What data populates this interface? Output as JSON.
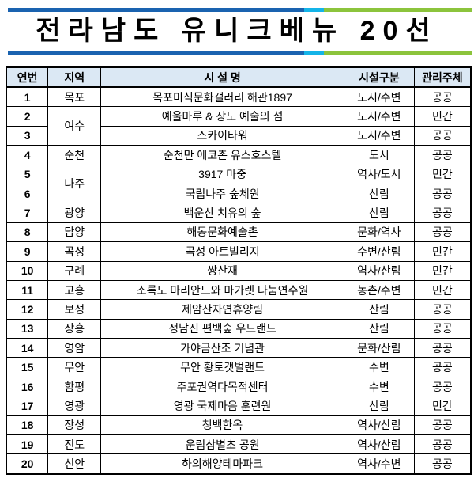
{
  "title": "전라남도 유니크베뉴 20선",
  "colors": {
    "bar_blue": "#1a63b0",
    "bar_cyan": "#14b4e8",
    "bar_green": "#8cc43c",
    "header_bg": "#dbe8f4"
  },
  "headers": [
    "연번",
    "지역",
    "시 설 명",
    "시설구분",
    "관리주체"
  ],
  "rows": [
    {
      "no": "1",
      "region": "목포",
      "name": "목포미식문화갤러리 해관1897",
      "type": "도시/수변",
      "manager": "공공"
    },
    {
      "no": "2",
      "region": "여수",
      "name": "예울마루 & 장도 예술의 섬",
      "type": "도시/수변",
      "manager": "민간"
    },
    {
      "no": "3",
      "region": "",
      "name": "스카이타워",
      "type": "도시/수변",
      "manager": "공공"
    },
    {
      "no": "4",
      "region": "순천",
      "name": "순천만 에코촌 유스호스텔",
      "type": "도시",
      "manager": "공공"
    },
    {
      "no": "5",
      "region": "나주",
      "name": "3917 마중",
      "type": "역사/도시",
      "manager": "민간"
    },
    {
      "no": "6",
      "region": "",
      "name": "국립나주 숲체원",
      "type": "산림",
      "manager": "공공"
    },
    {
      "no": "7",
      "region": "광양",
      "name": "백운산 치유의 숲",
      "type": "산림",
      "manager": "공공"
    },
    {
      "no": "8",
      "region": "담양",
      "name": "해동문화예술촌",
      "type": "문화/역사",
      "manager": "공공"
    },
    {
      "no": "9",
      "region": "곡성",
      "name": "곡성 아트빌리지",
      "type": "수변/산림",
      "manager": "민간"
    },
    {
      "no": "10",
      "region": "구례",
      "name": "쌍산재",
      "type": "역사/산림",
      "manager": "민간"
    },
    {
      "no": "11",
      "region": "고흥",
      "name": "소록도 마리안느와 마가렛 나눔연수원",
      "type": "농촌/수변",
      "manager": "민간"
    },
    {
      "no": "12",
      "region": "보성",
      "name": "제암산자연휴양림",
      "type": "산림",
      "manager": "공공"
    },
    {
      "no": "13",
      "region": "장흥",
      "name": "정남진 편백숲 우드랜드",
      "type": "산림",
      "manager": "공공"
    },
    {
      "no": "14",
      "region": "영암",
      "name": "가야금산조 기념관",
      "type": "문화/산림",
      "manager": "공공"
    },
    {
      "no": "15",
      "region": "무안",
      "name": "무안 황토갯벌랜드",
      "type": "수변",
      "manager": "공공"
    },
    {
      "no": "16",
      "region": "함평",
      "name": "주포권역다목적센터",
      "type": "수변",
      "manager": "공공"
    },
    {
      "no": "17",
      "region": "영광",
      "name": "영광 국제마음 훈련원",
      "type": "산림",
      "manager": "민간"
    },
    {
      "no": "18",
      "region": "장성",
      "name": "청백한옥",
      "type": "역사/산림",
      "manager": "공공"
    },
    {
      "no": "19",
      "region": "진도",
      "name": "운림삼별초 공원",
      "type": "역사/산림",
      "manager": "공공"
    },
    {
      "no": "20",
      "region": "신안",
      "name": "하의해양테마파크",
      "type": "역사/수변",
      "manager": "공공"
    }
  ]
}
